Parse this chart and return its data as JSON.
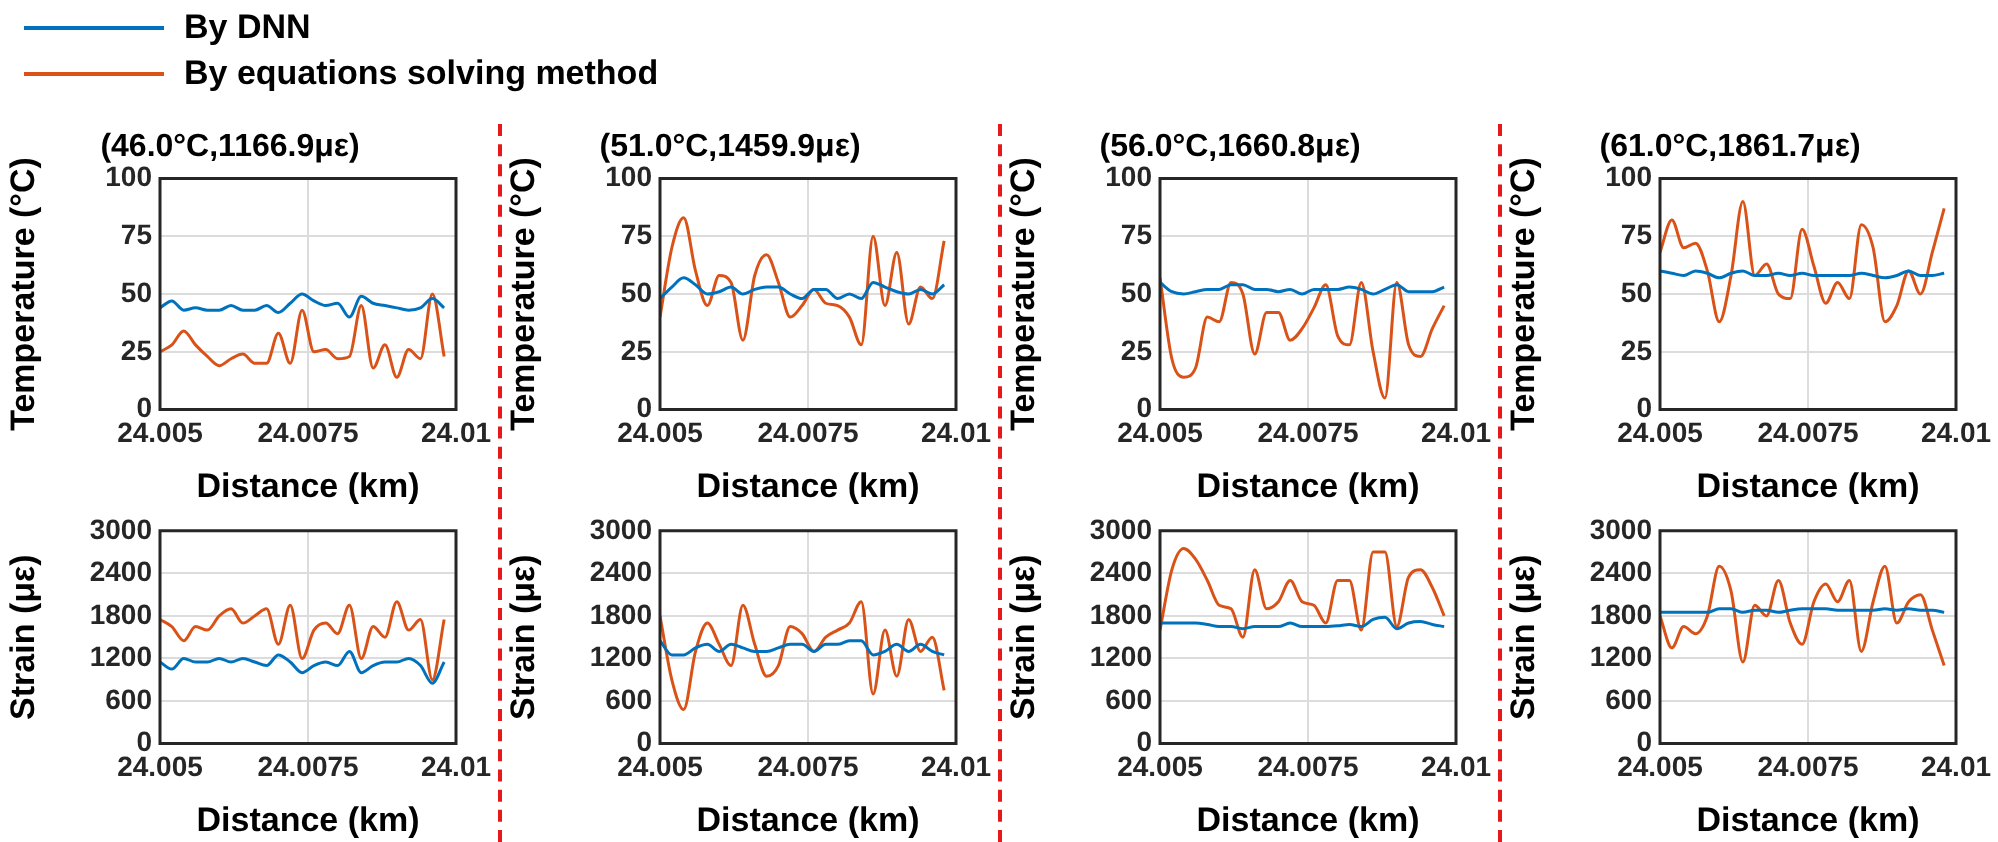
{
  "chart_data": [
    {
      "type": "line",
      "title": "(46.0°C,1166.9με)",
      "xlabel": "Distance (km)",
      "ylabel": "Temperature (°C)",
      "x": [
        24.005,
        24.0052,
        24.0054,
        24.0056,
        24.0058,
        24.006,
        24.0062,
        24.0064,
        24.0066,
        24.0068,
        24.007,
        24.0072,
        24.0074,
        24.0076,
        24.0078,
        24.008,
        24.0082,
        24.0084,
        24.0086,
        24.0088,
        24.009,
        24.0092,
        24.0094,
        24.0096,
        24.0098
      ],
      "xlim": [
        24.005,
        24.01
      ],
      "xticks": [
        24.005,
        24.0075,
        24.01
      ],
      "ylim": [
        0,
        100
      ],
      "yticks": [
        0,
        25,
        50,
        75,
        100
      ],
      "grid": true,
      "legend": "top",
      "series": [
        {
          "name": "By DNN",
          "color": "#0072bd",
          "values": [
            44,
            47,
            43,
            44,
            43,
            43,
            45,
            43,
            43,
            45,
            42,
            46,
            50,
            47,
            45,
            46,
            40,
            49,
            46,
            45,
            44,
            43,
            44,
            48,
            44
          ]
        },
        {
          "name": "By equations solving method",
          "color": "#d95319",
          "values": [
            25,
            28,
            34,
            28,
            23,
            19,
            22,
            24,
            20,
            20,
            33,
            20,
            43,
            25,
            26,
            22,
            23,
            45,
            18,
            28,
            14,
            26,
            22,
            50,
            23
          ]
        }
      ]
    },
    {
      "type": "line",
      "title": "(51.0°C,1459.9με)",
      "xlabel": "Distance (km)",
      "ylabel": "Temperature (°C)",
      "x": [
        24.005,
        24.0052,
        24.0054,
        24.0056,
        24.0058,
        24.006,
        24.0062,
        24.0064,
        24.0066,
        24.0068,
        24.007,
        24.0072,
        24.0074,
        24.0076,
        24.0078,
        24.008,
        24.0082,
        24.0084,
        24.0086,
        24.0088,
        24.009,
        24.0092,
        24.0094,
        24.0096,
        24.0098
      ],
      "xlim": [
        24.005,
        24.01
      ],
      "xticks": [
        24.005,
        24.0075,
        24.01
      ],
      "ylim": [
        0,
        100
      ],
      "yticks": [
        0,
        25,
        50,
        75,
        100
      ],
      "grid": true,
      "series": [
        {
          "color": "#0072bd",
          "values": [
            48,
            53,
            57,
            54,
            50,
            51,
            53,
            50,
            52,
            53,
            53,
            50,
            48,
            52,
            52,
            48,
            50,
            48,
            55,
            53,
            51,
            50,
            52,
            50,
            54
          ]
        },
        {
          "color": "#d95319",
          "values": [
            40,
            70,
            83,
            60,
            45,
            58,
            55,
            30,
            58,
            67,
            55,
            40,
            45,
            52,
            46,
            45,
            40,
            28,
            75,
            45,
            68,
            37,
            53,
            48,
            73
          ]
        }
      ]
    },
    {
      "type": "line",
      "title": "(56.0°C,1660.8με)",
      "xlabel": "Distance (km)",
      "ylabel": "Temperature (°C)",
      "x": [
        24.005,
        24.0052,
        24.0054,
        24.0056,
        24.0058,
        24.006,
        24.0062,
        24.0064,
        24.0066,
        24.0068,
        24.007,
        24.0072,
        24.0074,
        24.0076,
        24.0078,
        24.008,
        24.0082,
        24.0084,
        24.0086,
        24.0088,
        24.009,
        24.0092,
        24.0094,
        24.0096,
        24.0098
      ],
      "xlim": [
        24.005,
        24.01
      ],
      "xticks": [
        24.005,
        24.0075,
        24.01
      ],
      "ylim": [
        0,
        100
      ],
      "yticks": [
        0,
        25,
        50,
        75,
        100
      ],
      "grid": true,
      "series": [
        {
          "color": "#0072bd",
          "values": [
            55,
            51,
            50,
            51,
            52,
            52,
            54,
            54,
            52,
            52,
            51,
            52,
            50,
            52,
            52,
            52,
            53,
            52,
            50,
            52,
            54,
            51,
            51,
            51,
            53
          ]
        },
        {
          "color": "#d95319",
          "values": [
            57,
            22,
            14,
            18,
            40,
            38,
            55,
            50,
            24,
            42,
            42,
            30,
            35,
            44,
            54,
            32,
            28,
            55,
            25,
            5,
            55,
            28,
            23,
            35,
            45
          ]
        }
      ]
    },
    {
      "type": "line",
      "title": "(61.0°C,1861.7με)",
      "xlabel": "Distance (km)",
      "ylabel": "Temperature (°C)",
      "x": [
        24.005,
        24.0052,
        24.0054,
        24.0056,
        24.0058,
        24.006,
        24.0062,
        24.0064,
        24.0066,
        24.0068,
        24.007,
        24.0072,
        24.0074,
        24.0076,
        24.0078,
        24.008,
        24.0082,
        24.0084,
        24.0086,
        24.0088,
        24.009,
        24.0092,
        24.0094,
        24.0096,
        24.0098
      ],
      "xlim": [
        24.005,
        24.01
      ],
      "xticks": [
        24.005,
        24.0075,
        24.01
      ],
      "ylim": [
        0,
        100
      ],
      "yticks": [
        0,
        25,
        50,
        75,
        100
      ],
      "grid": true,
      "series": [
        {
          "color": "#0072bd",
          "values": [
            60,
            59,
            58,
            60,
            59,
            57,
            59,
            60,
            58,
            58,
            59,
            58,
            59,
            58,
            58,
            58,
            58,
            59,
            58,
            57,
            58,
            60,
            58,
            58,
            59
          ]
        },
        {
          "color": "#d95319",
          "values": [
            68,
            82,
            70,
            72,
            60,
            38,
            58,
            90,
            58,
            63,
            50,
            48,
            78,
            62,
            46,
            55,
            48,
            80,
            70,
            38,
            45,
            60,
            50,
            68,
            87
          ]
        }
      ]
    },
    {
      "type": "line",
      "xlabel": "Distance (km)",
      "ylabel": "Strain (με)",
      "x": [
        24.005,
        24.0052,
        24.0054,
        24.0056,
        24.0058,
        24.006,
        24.0062,
        24.0064,
        24.0066,
        24.0068,
        24.007,
        24.0072,
        24.0074,
        24.0076,
        24.0078,
        24.008,
        24.0082,
        24.0084,
        24.0086,
        24.0088,
        24.009,
        24.0092,
        24.0094,
        24.0096,
        24.0098
      ],
      "xlim": [
        24.005,
        24.01
      ],
      "xticks": [
        24.005,
        24.0075,
        24.01
      ],
      "ylim": [
        0,
        3000
      ],
      "yticks": [
        0,
        600,
        1200,
        1800,
        2400,
        3000
      ],
      "grid": true,
      "series": [
        {
          "color": "#0072bd",
          "values": [
            1150,
            1050,
            1200,
            1150,
            1150,
            1200,
            1150,
            1200,
            1150,
            1100,
            1250,
            1150,
            1000,
            1100,
            1150,
            1100,
            1300,
            1000,
            1100,
            1150,
            1150,
            1200,
            1100,
            850,
            1150
          ]
        },
        {
          "color": "#d95319",
          "values": [
            1750,
            1650,
            1450,
            1650,
            1600,
            1800,
            1900,
            1700,
            1800,
            1900,
            1400,
            1950,
            1200,
            1600,
            1700,
            1550,
            1950,
            1200,
            1650,
            1500,
            2000,
            1600,
            1750,
            900,
            1750
          ]
        }
      ]
    },
    {
      "type": "line",
      "xlabel": "Distance (km)",
      "ylabel": "Strain (με)",
      "x": [
        24.005,
        24.0052,
        24.0054,
        24.0056,
        24.0058,
        24.006,
        24.0062,
        24.0064,
        24.0066,
        24.0068,
        24.007,
        24.0072,
        24.0074,
        24.0076,
        24.0078,
        24.008,
        24.0082,
        24.0084,
        24.0086,
        24.0088,
        24.009,
        24.0092,
        24.0094,
        24.0096,
        24.0098
      ],
      "xlim": [
        24.005,
        24.01
      ],
      "xticks": [
        24.005,
        24.0075,
        24.01
      ],
      "ylim": [
        0,
        3000
      ],
      "yticks": [
        0,
        600,
        1200,
        1800,
        2400,
        3000
      ],
      "grid": true,
      "series": [
        {
          "color": "#0072bd",
          "values": [
            1450,
            1250,
            1250,
            1350,
            1400,
            1300,
            1400,
            1350,
            1300,
            1300,
            1350,
            1400,
            1400,
            1300,
            1400,
            1400,
            1450,
            1450,
            1250,
            1300,
            1400,
            1300,
            1400,
            1300,
            1250
          ]
        },
        {
          "color": "#d95319",
          "values": [
            1800,
            900,
            480,
            1300,
            1700,
            1400,
            1100,
            1950,
            1400,
            950,
            1100,
            1650,
            1550,
            1300,
            1500,
            1600,
            1700,
            2000,
            700,
            1600,
            950,
            1750,
            1300,
            1500,
            750
          ]
        }
      ]
    },
    {
      "type": "line",
      "xlabel": "Distance (km)",
      "ylabel": "Strain (με)",
      "x": [
        24.005,
        24.0052,
        24.0054,
        24.0056,
        24.0058,
        24.006,
        24.0062,
        24.0064,
        24.0066,
        24.0068,
        24.007,
        24.0072,
        24.0074,
        24.0076,
        24.0078,
        24.008,
        24.0082,
        24.0084,
        24.0086,
        24.0088,
        24.009,
        24.0092,
        24.0094,
        24.0096,
        24.0098
      ],
      "xlim": [
        24.005,
        24.01
      ],
      "xticks": [
        24.005,
        24.0075,
        24.01
      ],
      "ylim": [
        0,
        3000
      ],
      "yticks": [
        0,
        600,
        1200,
        1800,
        2400,
        3000
      ],
      "grid": true,
      "series": [
        {
          "color": "#0072bd",
          "values": [
            1700,
            1700,
            1700,
            1700,
            1680,
            1650,
            1650,
            1620,
            1650,
            1650,
            1650,
            1700,
            1650,
            1650,
            1650,
            1660,
            1680,
            1650,
            1750,
            1780,
            1620,
            1700,
            1720,
            1680,
            1650
          ]
        },
        {
          "color": "#d95319",
          "values": [
            1600,
            2450,
            2750,
            2600,
            2300,
            1950,
            1900,
            1500,
            2450,
            1900,
            2000,
            2300,
            2000,
            1950,
            1700,
            2300,
            2300,
            1600,
            2700,
            2700,
            1650,
            2350,
            2450,
            2200,
            1800
          ]
        }
      ]
    },
    {
      "type": "line",
      "xlabel": "Distance (km)",
      "ylabel": "Strain (με)",
      "x": [
        24.005,
        24.0052,
        24.0054,
        24.0056,
        24.0058,
        24.006,
        24.0062,
        24.0064,
        24.0066,
        24.0068,
        24.007,
        24.0072,
        24.0074,
        24.0076,
        24.0078,
        24.008,
        24.0082,
        24.0084,
        24.0086,
        24.0088,
        24.009,
        24.0092,
        24.0094,
        24.0096,
        24.0098
      ],
      "xlim": [
        24.005,
        24.01
      ],
      "xticks": [
        24.005,
        24.0075,
        24.01
      ],
      "ylim": [
        0,
        3000
      ],
      "yticks": [
        0,
        600,
        1200,
        1800,
        2400,
        3000
      ],
      "grid": true,
      "series": [
        {
          "color": "#0072bd",
          "values": [
            1850,
            1850,
            1850,
            1850,
            1850,
            1900,
            1900,
            1850,
            1880,
            1880,
            1850,
            1880,
            1900,
            1900,
            1900,
            1880,
            1880,
            1880,
            1880,
            1900,
            1880,
            1900,
            1880,
            1880,
            1850
          ]
        },
        {
          "color": "#d95319",
          "values": [
            1800,
            1350,
            1650,
            1550,
            1800,
            2500,
            2150,
            1150,
            1950,
            1800,
            2300,
            1700,
            1400,
            2000,
            2250,
            2000,
            2300,
            1300,
            2000,
            2500,
            1700,
            2000,
            2100,
            1600,
            1100
          ]
        }
      ]
    }
  ]
}
